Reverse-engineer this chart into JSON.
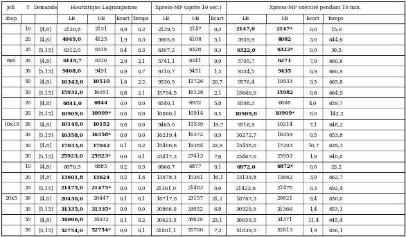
{
  "rows": [
    {
      "job": "",
      "T": "10",
      "dem": "[4,8]",
      "lb1": "2130,8",
      "ub1": "2151",
      "e1": "0,9",
      "t1": "0,2",
      "lb2": "2139,5",
      "ub2": "2147",
      "e2": "0,3",
      "lb3": "2147,0",
      "ub3": "2147*",
      "e3": "0,0",
      "t3": "15,0",
      "bold_lb1": false,
      "bold_ub1": false,
      "bold_lb3": true,
      "bold_ub3": true
    },
    {
      "job": "",
      "T": "20",
      "dem": "[4,8]",
      "lb1": "4049,0",
      "ub1": "4125",
      "e1": "1,9",
      "t1": "0,3",
      "lb2": "3905,6",
      "ub2": "4108",
      "e2": "5,1",
      "lb3": "3959,9",
      "ub3": "4082",
      "e3": "3,0",
      "t3": "644,6",
      "bold_lb1": true,
      "bold_ub1": false,
      "bold_lb3": false,
      "bold_ub3": true
    },
    {
      "job": "",
      "T": "20",
      "dem": "[5,15]",
      "lb1": "6312,0",
      "ub1": "6339",
      "e1": "0,4",
      "t1": "0,3",
      "lb2": "6307,2",
      "ub2": "6328",
      "e2": "0,3",
      "lb3": "6322,0",
      "ub3": "6322*",
      "e3": "0,0",
      "t3": "30,5",
      "bold_lb1": false,
      "bold_ub1": false,
      "bold_lb3": true,
      "bold_ub3": true
    },
    {
      "job": "6x6",
      "T": "30",
      "dem": "[4,8]",
      "lb1": "6149,7",
      "ub1": "6326",
      "e1": "2,9",
      "t1": "2,1",
      "lb2": "5741,1",
      "ub2": "6341",
      "e2": "9,9",
      "lb3": "5795,7",
      "ub3": "6271",
      "e3": "7,9",
      "t3": "660,6",
      "bold_lb1": true,
      "bold_ub1": false,
      "bold_lb3": false,
      "bold_ub3": true
    },
    {
      "job": "",
      "T": "30",
      "dem": "[5,15]",
      "lb1": "9408,0",
      "ub1": "9491",
      "e1": "0,9",
      "t1": "0,7",
      "lb2": "9310,7",
      "ub2": "9451",
      "e2": "1,5",
      "lb3": "9354,5",
      "ub3": "9435",
      "e3": "0,9",
      "t3": "660,9",
      "bold_lb1": true,
      "bold_ub1": false,
      "bold_lb3": false,
      "bold_ub3": true
    },
    {
      "job": "",
      "T": "50",
      "dem": "[4,8]",
      "lb1": "10343,0",
      "ub1": "10510",
      "e1": "1,6",
      "t1": "2,2",
      "lb2": "9530,9",
      "ub2": "11726",
      "e2": "20,7",
      "lb3": "9576,4",
      "ub3": "10533",
      "e3": "9,5",
      "t3": "665,8",
      "bold_lb1": true,
      "bold_ub1": true,
      "bold_lb3": false,
      "bold_ub3": false
    },
    {
      "job": "",
      "T": "50",
      "dem": "[5,15]",
      "lb1": "15931,0",
      "ub1": "16051",
      "e1": "0,8",
      "t1": "2,1",
      "lb2": "15794,5",
      "ub2": "16128",
      "e2": "2,1",
      "lb3": "15846,9",
      "ub3": "15982",
      "e3": "0,8",
      "t3": "664,9",
      "bold_lb1": true,
      "bold_ub1": false,
      "bold_lb3": false,
      "bold_ub3": true
    },
    {
      "job": "",
      "T": "20",
      "dem": "[4,8]",
      "lb1": "6841,0",
      "ub1": "6844",
      "e1": "0,0",
      "t1": "0,0",
      "lb2": "6540,1",
      "ub2": "6932",
      "e2": "5,8",
      "lb3": "6598,3",
      "ub3": "6868",
      "e3": "4,0",
      "t3": "659,7",
      "bold_lb1": true,
      "bold_ub1": true,
      "bold_lb3": false,
      "bold_ub3": false
    },
    {
      "job": "",
      "T": "20",
      "dem": "[5,15]",
      "lb1": "10909,0",
      "ub1": "10909*",
      "e1": "0,0",
      "t1": "0,0",
      "lb2": "10860,1",
      "ub2": "10914",
      "e2": "0,5",
      "lb3": "10909,0",
      "ub3": "10909*",
      "e3": "0,0",
      "t3": "142,2",
      "bold_lb1": true,
      "bold_ub1": true,
      "bold_lb3": true,
      "bold_ub3": true
    },
    {
      "job": "10x10",
      "T": "30",
      "dem": "[4,8]",
      "lb1": "10149,0",
      "ub1": "10152",
      "e1": "0,0",
      "t1": "0,0",
      "lb2": "9465,0",
      "ub2": "11539",
      "e2": "19,7",
      "lb3": "9516,9",
      "ub3": "10214",
      "e3": "7,1",
      "t3": "648,2",
      "bold_lb1": true,
      "bold_ub1": true,
      "bold_lb3": false,
      "bold_ub3": false
    },
    {
      "job": "",
      "T": "30",
      "dem": "[5,15]",
      "lb1": "16358,0",
      "ub1": "16358*",
      "e1": "0,0",
      "t1": "0,0",
      "lb2": "16219,4",
      "ub2": "16372",
      "e2": "0,9",
      "lb3": "16272,7",
      "ub3": "16359",
      "e3": "0,5",
      "t3": "653,8",
      "bold_lb1": true,
      "bold_ub1": true,
      "bold_lb3": false,
      "bold_ub3": false
    },
    {
      "job": "",
      "T": "50",
      "dem": "[4,8]",
      "lb1": "17033,0",
      "ub1": "17042",
      "e1": "0,1",
      "t1": "0,2",
      "lb2": "15406,6",
      "ub2": "19384",
      "e2": "22,9",
      "lb3": "15458,6",
      "ub3": "17203",
      "e3": "10,7",
      "t3": "639,3",
      "bold_lb1": true,
      "bold_ub1": true,
      "bold_lb3": false,
      "bold_ub3": false
    },
    {
      "job": "",
      "T": "50",
      "dem": "[5,15]",
      "lb1": "25923,0",
      "ub1": "25923*",
      "e1": "0,0",
      "t1": "0,1",
      "lb2": "25417,3",
      "ub2": "27413",
      "e2": "7,6",
      "lb3": "25467,6",
      "ub3": "25953",
      "e3": "1,9",
      "t3": "640,8",
      "bold_lb1": true,
      "bold_ub1": true,
      "bold_lb3": false,
      "bold_ub3": false
    },
    {
      "job": "",
      "T": "10",
      "dem": "[4,8]",
      "lb1": "6870,5",
      "ub1": "6883",
      "e1": "0,2",
      "t1": "0,3",
      "lb2": "6866,7",
      "ub2": "6877",
      "e2": "0,1",
      "lb3": "6872,0",
      "ub3": "6872*",
      "e3": "0,0",
      "t3": "23,2",
      "bold_lb1": false,
      "bold_ub1": false,
      "bold_lb3": true,
      "bold_ub3": true
    },
    {
      "job": "",
      "T": "20",
      "dem": "[4,8]",
      "lb1": "13601,8",
      "ub1": "13624",
      "e1": "0,2",
      "t1": "1,6",
      "lb2": "13078,3",
      "ub2": "15361",
      "e2": "16,1",
      "lb3": "13139,8",
      "ub3": "13662",
      "e3": "3,9",
      "t3": "662,7",
      "bold_lb1": true,
      "bold_ub1": true,
      "bold_lb3": false,
      "bold_ub3": false
    },
    {
      "job": "",
      "T": "20",
      "dem": "[5,15]",
      "lb1": "21475,0",
      "ub1": "21475*",
      "e1": "0,0",
      "t1": "0,0",
      "lb2": "21361,0",
      "ub2": "21483",
      "e2": "0,6",
      "lb3": "21422,6",
      "ub3": "21478",
      "e3": "0,3",
      "t3": "692,4",
      "bold_lb1": true,
      "bold_ub1": true,
      "bold_lb3": false,
      "bold_ub3": false
    },
    {
      "job": "20x5",
      "T": "30",
      "dem": "[4,8]",
      "lb1": "20430,0",
      "ub1": "20447",
      "e1": "0,1",
      "t1": "0,1",
      "lb2": "18717,8",
      "ub2": "23157",
      "e2": "21,2",
      "lb3": "18767,3",
      "ub3": "20621",
      "e3": "9,4",
      "t3": "650,0",
      "bold_lb1": true,
      "bold_ub1": false,
      "bold_lb3": false,
      "bold_ub3": false
    },
    {
      "job": "",
      "T": "30",
      "dem": "[5,15]",
      "lb1": "31335,0",
      "ub1": "31335*",
      "e1": "0,0",
      "t1": "0,0",
      "lb2": "30866,0",
      "ub2": "33052",
      "e2": "6,8",
      "lb3": "30920,9",
      "ub3": "31366",
      "e3": "1,4",
      "t3": "653,1",
      "bold_lb1": true,
      "bold_ub1": true,
      "bold_lb3": false,
      "bold_ub3": false
    },
    {
      "job": "",
      "T": "50",
      "dem": "[4,8]",
      "lb1": "34006,0",
      "ub1": "34032",
      "e1": "0,1",
      "t1": "0,2",
      "lb2": "30623,5",
      "ub2": "38620",
      "e2": "23,1",
      "lb3": "30650,5",
      "ub3": "34371",
      "e3": "11,4",
      "t3": "645,4",
      "bold_lb1": true,
      "bold_ub1": false,
      "bold_lb3": false,
      "bold_ub3": false
    },
    {
      "job": "",
      "T": "50",
      "dem": "[5,15]",
      "lb1": "52754,0",
      "ub1": "52754*",
      "e1": "0,0",
      "t1": "0,1",
      "lb2": "51801,1",
      "ub2": "55700",
      "e2": "7,3",
      "lb3": "51839,5",
      "ub3": "52813",
      "e3": "1,9",
      "t3": "636,1",
      "bold_lb1": true,
      "bold_ub1": true,
      "bold_lb3": false,
      "bold_ub3": false
    }
  ],
  "group_separators_after": [
    2,
    6,
    8,
    12,
    13,
    15,
    17
  ],
  "background": "#ffffff",
  "text_color": "#000000",
  "fontsize": 5.2
}
